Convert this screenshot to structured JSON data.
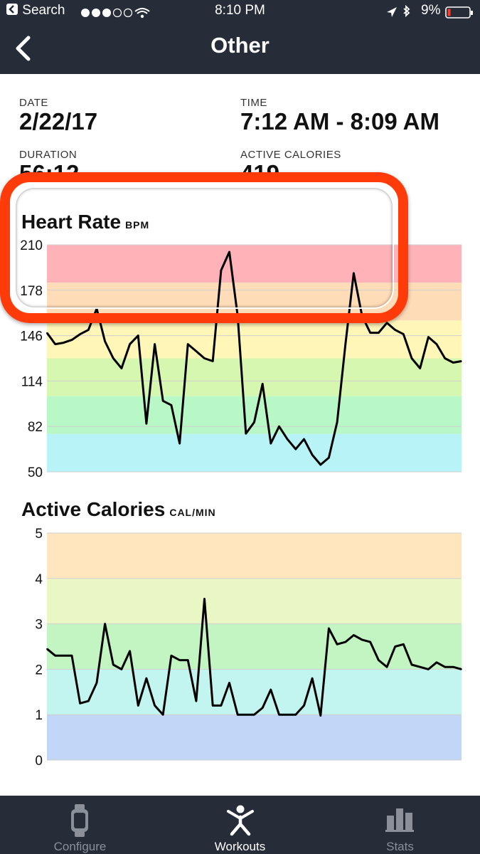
{
  "status_bar": {
    "back_app": "Search",
    "time": "8:10 PM",
    "battery": "9%"
  },
  "nav": {
    "title": "Other"
  },
  "summary": {
    "date_label": "DATE",
    "date_value": "2/22/17",
    "time_label": "TIME",
    "time_value": "7:12 AM - 8:09 AM",
    "duration_label": "DURATION",
    "duration_value": "56:12",
    "calories_label": "ACTIVE CALORIES",
    "calories_value": "419"
  },
  "heart_rate": {
    "title": "Heart Rate",
    "unit": "BPM"
  },
  "active_calories": {
    "title": "Active Calories",
    "unit": "CAL/MIN"
  },
  "tabs": [
    {
      "label": "Configure",
      "icon": "watch-icon",
      "active": false
    },
    {
      "label": "Workouts",
      "icon": "running-person-icon",
      "active": true
    },
    {
      "label": "Stats",
      "icon": "bar-chart-icon",
      "active": false
    }
  ],
  "colors": {
    "nav_bg": "#262c38",
    "highlight": "#ff3b0a",
    "tab_active": "#ffffff",
    "tab_inactive": "#8a8f99"
  },
  "chart_data": [
    {
      "type": "line",
      "title": "Heart Rate",
      "ylabel": "BPM",
      "ylim": [
        50,
        210
      ],
      "yticks": [
        210,
        178,
        146,
        114,
        82,
        50
      ],
      "zones": [
        "#ffb3b8",
        "#ffdcb8",
        "#fff6b8",
        "#d6f7b0",
        "#b8f7c6",
        "#b8f4f7"
      ],
      "x": [
        0,
        2,
        4,
        6,
        8,
        10,
        12,
        14,
        16,
        18,
        20,
        22,
        24,
        26,
        28,
        30,
        32,
        34,
        36,
        38,
        40,
        42,
        44,
        46,
        48,
        50,
        52,
        54,
        56,
        58,
        60,
        62,
        64,
        66,
        68,
        70,
        72,
        74,
        76,
        78,
        80,
        82,
        84,
        86,
        88,
        90,
        92,
        94,
        96,
        98,
        100
      ],
      "values": [
        148,
        140,
        141,
        143,
        147,
        150,
        165,
        142,
        130,
        123,
        140,
        146,
        84,
        140,
        100,
        97,
        70,
        140,
        135,
        130,
        128,
        192,
        205,
        160,
        77,
        85,
        112,
        70,
        82,
        73,
        66,
        73,
        62,
        55,
        60,
        85,
        140,
        190,
        160,
        148,
        148,
        155,
        150,
        147,
        130,
        123,
        145,
        140,
        130,
        127,
        128
      ]
    },
    {
      "type": "line",
      "title": "Active Calories",
      "ylabel": "CAL/MIN",
      "ylim": [
        0,
        5
      ],
      "yticks": [
        5,
        4,
        3,
        2,
        1,
        0
      ],
      "zones": [
        "#ffe6bf",
        "#eaf7c4",
        "#c2f5c2",
        "#c2f5ef",
        "#c2d6f7"
      ],
      "x": [
        0,
        2,
        4,
        6,
        8,
        10,
        12,
        14,
        16,
        18,
        20,
        22,
        24,
        26,
        28,
        30,
        32,
        34,
        36,
        38,
        40,
        42,
        44,
        46,
        48,
        50,
        52,
        54,
        56,
        58,
        60,
        62,
        64,
        66,
        68,
        70,
        72,
        74,
        76,
        78,
        80,
        82,
        84,
        86,
        88,
        90,
        92,
        94,
        96,
        98,
        100
      ],
      "values": [
        2.45,
        2.3,
        2.3,
        2.3,
        1.25,
        1.3,
        1.7,
        3.0,
        2.1,
        2.0,
        2.4,
        1.2,
        1.8,
        1.2,
        1.0,
        2.3,
        2.2,
        2.2,
        1.3,
        3.55,
        1.2,
        1.2,
        1.7,
        1.0,
        1.0,
        1.0,
        1.15,
        1.55,
        1.0,
        1.0,
        1.0,
        1.2,
        1.8,
        0.98,
        2.9,
        2.55,
        2.6,
        2.75,
        2.65,
        2.6,
        2.2,
        2.05,
        2.5,
        2.55,
        2.1,
        2.05,
        2.0,
        2.15,
        2.05,
        2.05,
        2.0
      ]
    }
  ]
}
